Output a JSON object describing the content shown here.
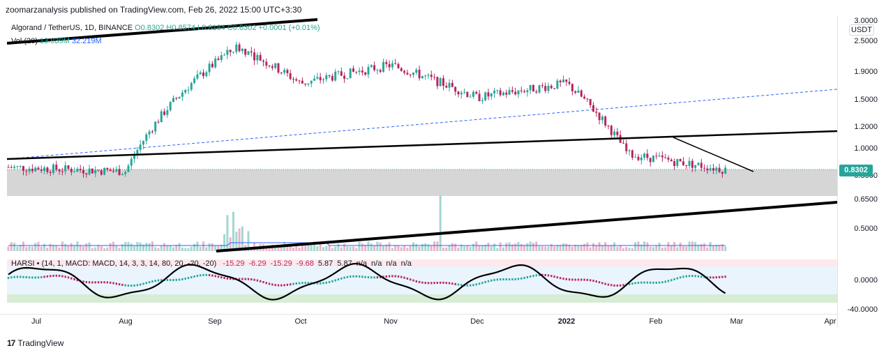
{
  "publisher_line": "zoomarzanalysis published on TradingView.com, Feb 26, 2022 15:00 UTC+3:30",
  "symbol_legend": {
    "name": "Algorand / TetherUS, 1D, BINANCE",
    "open": "O0.8302",
    "high": "H0.8574",
    "low": "L0.8184",
    "close": "C0.8302",
    "change": "+0.0001 (+0.01%)"
  },
  "volume_legend": {
    "label": "Vol (20)",
    "value1": "13.939M",
    "value2": "32.219M"
  },
  "harsi_legend": "HARSI • (14, 1, MACD: MACD, 14, 3, 3, 14, 80, 20, -20, -20)",
  "harsi_values": [
    "-15.29",
    "-6.29",
    "-15.29",
    "-9.68",
    "5.87",
    "5.87",
    "n/a",
    "n/a",
    "n/a",
    "n/a"
  ],
  "currency_button": "USDT",
  "current_price": "0.8302",
  "price_ticks": [
    "3.0000",
    "2.5000",
    "1.9000",
    "1.5000",
    "1.2000",
    "1.0000",
    "0.8000",
    "0.6500",
    "0.5000"
  ],
  "osc_ticks": [
    "0.0000",
    "-40.0000"
  ],
  "time_labels": [
    "Jul",
    "Aug",
    "Sep",
    "Oct",
    "Nov",
    "Dec",
    "2022",
    "Feb",
    "Mar",
    "Apr"
  ],
  "footer_brand": "TradingView",
  "colors": {
    "up": "#26a69a",
    "down": "#b7265e",
    "zone": "#c8c8c8",
    "trend": "#000000",
    "dash": "#2962ff",
    "vol_ma": "#2962ff"
  },
  "chart_data": [
    {
      "type": "candlestick",
      "title": "Algorand / TetherUS, 1D, BINANCE",
      "x_range": [
        "Jul",
        "Apr"
      ],
      "ylim": [
        0.45,
        3.0
      ],
      "scale": "log",
      "key_points": [
        {
          "x": "Jul",
          "y": 0.85
        },
        {
          "x": "Aug",
          "y": 0.82
        },
        {
          "x": "Sep",
          "y": 2.4
        },
        {
          "x": "Oct",
          "y": 1.75
        },
        {
          "x": "Nov",
          "y": 2.05
        },
        {
          "x": "Dec",
          "y": 1.55
        },
        {
          "x": "2022",
          "y": 1.75
        },
        {
          "x": "Feb",
          "y": 0.95
        },
        {
          "x": "Feb 26",
          "y": 0.83
        }
      ],
      "last": 0.8302
    },
    {
      "type": "bar",
      "title": "Vol (20)",
      "values_label": [
        "13.939M",
        "32.219M"
      ]
    },
    {
      "type": "line",
      "title": "HARSI",
      "ylim": [
        -40,
        20
      ]
    }
  ]
}
